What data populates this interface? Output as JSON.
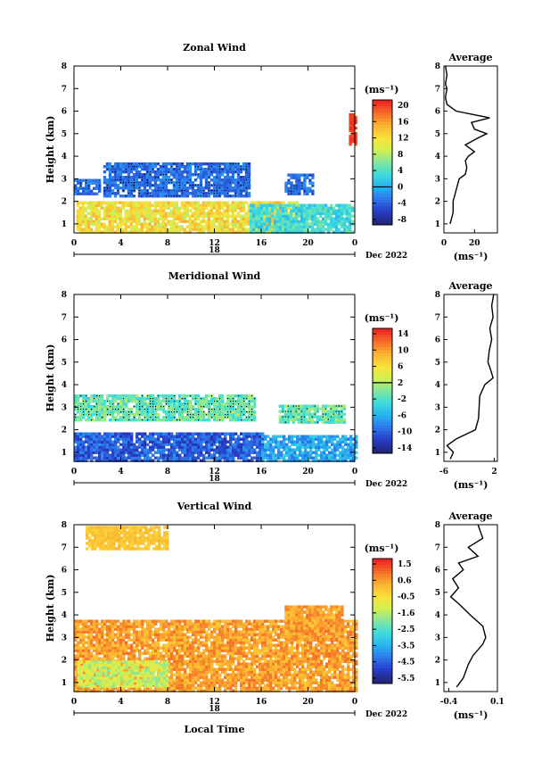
{
  "panels": [
    {
      "title": "Zonal Wind",
      "avg_title": "Average",
      "unit": "(ms⁻¹)",
      "avg_unit": "(ms⁻¹)",
      "ylabel": "Height (km)",
      "yticks": [
        "1",
        "2",
        "3",
        "4",
        "5",
        "6",
        "7",
        "8"
      ],
      "xticks": [
        "0",
        "4",
        "8",
        "12",
        "16",
        "20",
        "0"
      ],
      "date_mark": "18",
      "date_label": "Dec 2022",
      "cbar_labels": [
        "20",
        "16",
        "12",
        "8",
        "4",
        "0",
        "-4",
        "-8"
      ],
      "cbar_min": -10,
      "cbar_max": 22,
      "avg_xticks": [
        "0",
        "20"
      ],
      "avg_xlim": [
        0,
        35
      ],
      "avg_profile": [
        [
          1,
          4
        ],
        [
          1.5,
          6
        ],
        [
          2,
          6
        ],
        [
          2.5,
          8
        ],
        [
          3,
          10
        ],
        [
          3.2,
          14
        ],
        [
          3.5,
          15
        ],
        [
          3.8,
          14
        ],
        [
          4,
          16
        ],
        [
          4.2,
          20
        ],
        [
          4.5,
          14
        ],
        [
          4.8,
          22
        ],
        [
          5,
          28
        ],
        [
          5.2,
          20
        ],
        [
          5.5,
          18
        ],
        [
          5.7,
          30
        ],
        [
          6,
          8
        ],
        [
          6.3,
          2
        ],
        [
          6.6,
          1
        ],
        [
          7,
          2
        ],
        [
          7.2,
          1
        ],
        [
          7.6,
          2
        ],
        [
          8,
          1
        ]
      ],
      "blocks": [
        {
          "t0": 0.2,
          "t1": 19,
          "h0": 0.7,
          "h1": 2.1,
          "vmin": 8,
          "vmax": 16
        },
        {
          "t0": 15,
          "t1": 23.8,
          "h0": 0.7,
          "h1": 1.9,
          "vmin": 0,
          "vmax": 6
        },
        {
          "t0": 2.5,
          "t1": 15,
          "h0": 2.3,
          "h1": 3.8,
          "vmin": -6,
          "vmax": -2,
          "stipple": true
        },
        {
          "t0": 0,
          "t1": 2.2,
          "h0": 2.4,
          "h1": 3.1,
          "vmin": -6,
          "vmax": -2,
          "stipple": true
        },
        {
          "t0": 18,
          "t1": 20.5,
          "h0": 2.4,
          "h1": 3.3,
          "vmin": -6,
          "vmax": -2,
          "stipple": true
        },
        {
          "t0": 23.5,
          "t1": 24,
          "h0": 4.6,
          "h1": 6.0,
          "vmin": 20,
          "vmax": 22
        }
      ]
    },
    {
      "title": "Meridional Wind",
      "avg_title": "Average",
      "unit": "(ms⁻¹)",
      "avg_unit": "(ms⁻¹)",
      "ylabel": "Height (km)",
      "yticks": [
        "1",
        "2",
        "3",
        "4",
        "5",
        "6",
        "7",
        "8"
      ],
      "xticks": [
        "0",
        "4",
        "8",
        "12",
        "16",
        "20",
        "0"
      ],
      "date_mark": "18",
      "date_label": "Dec 2022",
      "cbar_labels": [
        "14",
        "10",
        "6",
        "2",
        "-2",
        "-6",
        "-10",
        "-14"
      ],
      "cbar_min": -16,
      "cbar_max": 16,
      "avg_xticks": [
        "-6",
        "2"
      ],
      "avg_xlim": [
        -6,
        2.5
      ],
      "avg_profile": [
        [
          0.7,
          -5
        ],
        [
          1,
          -4.5
        ],
        [
          1.3,
          -5.5
        ],
        [
          1.6,
          -4
        ],
        [
          2,
          -1
        ],
        [
          2.5,
          -0.5
        ],
        [
          3,
          -0.4
        ],
        [
          3.5,
          -0.3
        ],
        [
          4,
          0.5
        ],
        [
          4.3,
          1.8
        ],
        [
          4.6,
          1.5
        ],
        [
          5,
          1
        ],
        [
          5.5,
          1.2
        ],
        [
          6,
          1.6
        ],
        [
          6.5,
          1.3
        ],
        [
          7,
          1.8
        ],
        [
          7.5,
          1.6
        ],
        [
          8,
          1.9
        ]
      ],
      "blocks": [
        {
          "t0": 0,
          "t1": 16,
          "h0": 0.7,
          "h1": 1.9,
          "vmin": -14,
          "vmax": -8
        },
        {
          "t0": 16,
          "t1": 24,
          "h0": 0.7,
          "h1": 1.8,
          "vmin": -10,
          "vmax": -4
        },
        {
          "t0": 0,
          "t1": 15.5,
          "h0": 2.5,
          "h1": 3.6,
          "vmin": -4,
          "vmax": 2,
          "stipple": true
        },
        {
          "t0": 17.5,
          "t1": 23,
          "h0": 2.4,
          "h1": 3.2,
          "vmin": -4,
          "vmax": 2,
          "stipple": true
        }
      ]
    },
    {
      "title": "Vertical Wind",
      "avg_title": "Average",
      "unit": "(ms⁻¹)",
      "avg_unit": "(ms⁻¹)",
      "ylabel": "Height (km)",
      "yticks": [
        "1",
        "2",
        "3",
        "4",
        "5",
        "6",
        "7",
        "8"
      ],
      "xticks": [
        "0",
        "4",
        "8",
        "12",
        "16",
        "20",
        "0"
      ],
      "date_mark": "18",
      "date_label": "Dec 2022",
      "xlabel": "Local Time",
      "cbar_labels": [
        "1.5",
        "0.6",
        "-0.5",
        "-1.6",
        "-2.5",
        "-3.5",
        "-4.5",
        "-5.5"
      ],
      "cbar_min": -6,
      "cbar_max": 2,
      "avg_xticks": [
        "-0.4",
        "0.1"
      ],
      "avg_xlim": [
        -0.45,
        0.1
      ],
      "avg_profile": [
        [
          0.8,
          -0.32
        ],
        [
          1.2,
          -0.25
        ],
        [
          1.8,
          -0.2
        ],
        [
          2.2,
          -0.15
        ],
        [
          2.7,
          -0.05
        ],
        [
          3,
          -0.02
        ],
        [
          3.5,
          -0.05
        ],
        [
          4,
          -0.18
        ],
        [
          4.5,
          -0.3
        ],
        [
          4.8,
          -0.38
        ],
        [
          5.2,
          -0.3
        ],
        [
          5.6,
          -0.36
        ],
        [
          6,
          -0.25
        ],
        [
          6.3,
          -0.3
        ],
        [
          6.6,
          -0.1
        ],
        [
          7,
          -0.2
        ],
        [
          7.4,
          -0.05
        ],
        [
          8,
          -0.1
        ]
      ],
      "blocks": [
        {
          "t0": 0,
          "t1": 24,
          "h0": 0.7,
          "h1": 3.8,
          "vmin": 0,
          "vmax": 1.2
        },
        {
          "t0": 0.3,
          "t1": 8,
          "h0": 0.9,
          "h1": 2.0,
          "vmin": -2,
          "vmax": -0.6
        },
        {
          "t0": 18,
          "t1": 23,
          "h0": 3.0,
          "h1": 4.5,
          "vmin": 0,
          "vmax": 1.2
        },
        {
          "t0": 1,
          "t1": 8,
          "h0": 7.0,
          "h1": 8.0,
          "vmin": -0.2,
          "vmax": 0.4
        }
      ]
    }
  ]
}
